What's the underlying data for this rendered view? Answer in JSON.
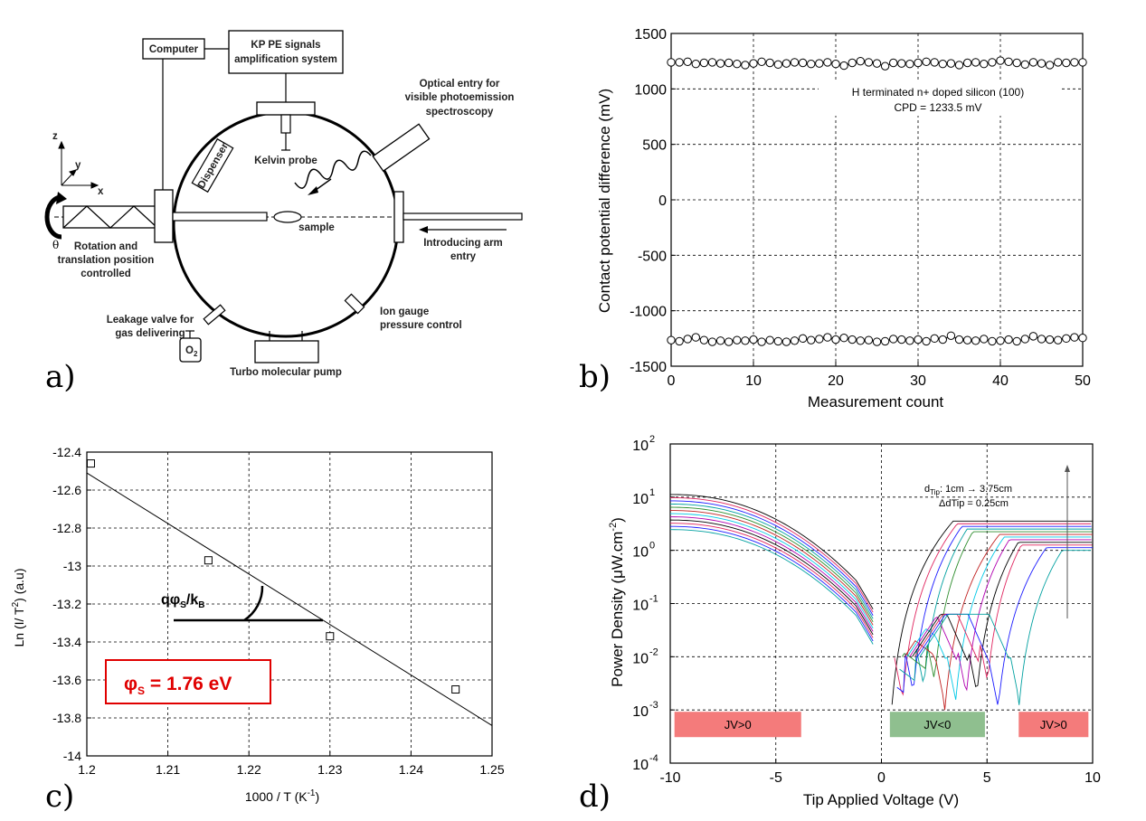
{
  "panels": {
    "a": "a)",
    "b": "b)",
    "c": "c)",
    "d": "d)"
  },
  "diagram": {
    "labels": {
      "computer": "Computer",
      "kp1": "KP PE signals",
      "kp2": "amplification system",
      "opt1": "Optical entry for",
      "opt2": "visible photoemission",
      "opt3": "spectroscopy",
      "kelvin": "Kelvin probe",
      "dispenser": "Dispenser",
      "sample": "sample",
      "rot1": "Rotation and",
      "rot2": "translation position",
      "rot3": "controlled",
      "intro1": "Introducing arm",
      "intro2": "entry",
      "ion1": "Ion gauge",
      "ion2": "pressure control",
      "leak1": "Leakage valve for",
      "leak2": "gas delivering",
      "o2": "O",
      "o2sub": "2",
      "turbo": "Turbo molecular pump",
      "z": "z",
      "y": "y",
      "x": "x",
      "theta": "θ"
    }
  },
  "chart_data": [
    {
      "id": "b",
      "type": "scatter",
      "xlabel": "Measurement count",
      "ylabel": "Contact potential difference (mV)",
      "xlim": [
        0,
        50
      ],
      "ylim": [
        -1500,
        1500
      ],
      "xticks": [
        0,
        10,
        20,
        30,
        40,
        50
      ],
      "yticks": [
        -1500,
        -1000,
        -500,
        0,
        500,
        1000,
        1500
      ],
      "grid": true,
      "annotation": [
        "H terminated n+ doped silicon (100)",
        "CPD = 1233.5 mV"
      ],
      "series": [
        {
          "x": [
            0,
            1,
            2,
            3,
            4,
            5,
            6,
            7,
            8,
            9,
            10,
            11,
            12,
            13,
            14,
            15,
            16,
            17,
            18,
            19,
            20,
            21,
            22,
            23,
            24,
            25,
            26,
            27,
            28,
            29,
            30,
            31,
            32,
            33,
            34,
            35,
            36,
            37,
            38,
            39,
            40,
            41,
            42,
            43,
            44,
            45,
            46,
            47,
            48,
            49,
            50
          ],
          "y": [
            1240,
            1240,
            1245,
            1225,
            1235,
            1240,
            1230,
            1235,
            1225,
            1215,
            1230,
            1245,
            1235,
            1220,
            1230,
            1240,
            1235,
            1225,
            1230,
            1240,
            1225,
            1210,
            1235,
            1250,
            1240,
            1230,
            1205,
            1235,
            1230,
            1225,
            1235,
            1245,
            1240,
            1225,
            1230,
            1215,
            1235,
            1240,
            1225,
            1240,
            1255,
            1245,
            1235,
            1220,
            1240,
            1230,
            1215,
            1240,
            1235,
            1240,
            1240
          ]
        },
        {
          "x": [
            0,
            1,
            2,
            3,
            4,
            5,
            6,
            7,
            8,
            9,
            10,
            11,
            12,
            13,
            14,
            15,
            16,
            17,
            18,
            19,
            20,
            21,
            22,
            23,
            24,
            25,
            26,
            27,
            28,
            29,
            30,
            31,
            32,
            33,
            34,
            35,
            36,
            37,
            38,
            39,
            40,
            41,
            42,
            43,
            44,
            45,
            46,
            47,
            48,
            49,
            50
          ],
          "y": [
            -1265,
            -1275,
            -1255,
            -1240,
            -1265,
            -1280,
            -1270,
            -1280,
            -1265,
            -1270,
            -1260,
            -1280,
            -1265,
            -1275,
            -1280,
            -1270,
            -1250,
            -1265,
            -1255,
            -1240,
            -1260,
            -1245,
            -1260,
            -1270,
            -1265,
            -1280,
            -1275,
            -1255,
            -1260,
            -1270,
            -1260,
            -1275,
            -1250,
            -1260,
            -1225,
            -1260,
            -1265,
            -1270,
            -1255,
            -1275,
            -1270,
            -1260,
            -1275,
            -1255,
            -1230,
            -1255,
            -1260,
            -1265,
            -1250,
            -1240,
            -1245
          ]
        }
      ]
    },
    {
      "id": "c",
      "type": "scatter",
      "xlabel": "1000 / T (K",
      "xlabel_sup": "-1",
      "xlabel_end": ")",
      "ylabel": "Ln (I/ T",
      "ylabel_sup": "2",
      "ylabel_end": ") (a.u)",
      "xlim": [
        1.2,
        1.25
      ],
      "ylim": [
        -14,
        -12.4
      ],
      "xticks": [
        1.2,
        1.21,
        1.22,
        1.23,
        1.24,
        1.25
      ],
      "xticklabels": [
        "1.2",
        "1.21",
        "1.22",
        "1.23",
        "1.24",
        "1.25"
      ],
      "yticks": [
        -14,
        -13.8,
        -13.6,
        -13.4,
        -13.2,
        -13,
        -12.8,
        -12.6,
        -12.4
      ],
      "yticklabels": [
        "-14",
        "-13.8",
        "-13.6",
        "-13.4",
        "-13.2",
        "-13",
        "-12.8",
        "-12.6",
        "-12.4"
      ],
      "grid": true,
      "points": {
        "x": [
          1.2005,
          1.215,
          1.23,
          1.2455
        ],
        "y": [
          -12.46,
          -12.97,
          -13.37,
          -13.65
        ]
      },
      "fit_line": {
        "x": [
          1.2,
          1.25
        ],
        "y": [
          -12.51,
          -13.84
        ]
      },
      "slope_label": "qφ",
      "slope_sub1": "S",
      "slope_mid": "/k",
      "slope_sub2": "B",
      "result_phi": "φ",
      "result_sub": "S",
      "result_rest": " = 1.76 eV",
      "result_color": "#e00000"
    },
    {
      "id": "d",
      "type": "line",
      "xlabel": "Tip Applied Voltage (V)",
      "ylabel": "Power Density (μW.cm",
      "ylabel_sup": "-2",
      "ylabel_end": ")",
      "xlim": [
        -10,
        10
      ],
      "ylim_log10": [
        -4,
        2
      ],
      "xticks": [
        -10,
        -5,
        0,
        5,
        10
      ],
      "yticks_exp": [
        -4,
        -3,
        -2,
        -1,
        0,
        1,
        2
      ],
      "grid": true,
      "annotation_line1_pre": "d",
      "annotation_line1_sub": "Tip",
      "annotation_line1_post": ": 1cm → 3.75cm",
      "annotation_line2": "ΔdTip = 0.25cm",
      "series_colors": [
        "#000000",
        "#e0245e",
        "#1a1aff",
        "#00a0a0",
        "#2c8c2c",
        "#c02020",
        "#00c8e6",
        "#b000b0",
        "#000000",
        "#e0245e",
        "#1a1aff",
        "#00a0a0"
      ],
      "curve_shifts_v": [
        0,
        0.5,
        1.0,
        1.5,
        2.0,
        2.5,
        3.0,
        3.5,
        4.0,
        4.5,
        5.0,
        6.0
      ],
      "regions": [
        {
          "label": "JV>0",
          "from": -9.8,
          "to": -3.8,
          "color": "#f47b7b"
        },
        {
          "label": "JV<0",
          "from": 0.4,
          "to": 4.9,
          "color": "#8fbf8f"
        },
        {
          "label": "JV>0",
          "from": 6.5,
          "to": 9.8,
          "color": "#f47b7b"
        }
      ]
    }
  ]
}
